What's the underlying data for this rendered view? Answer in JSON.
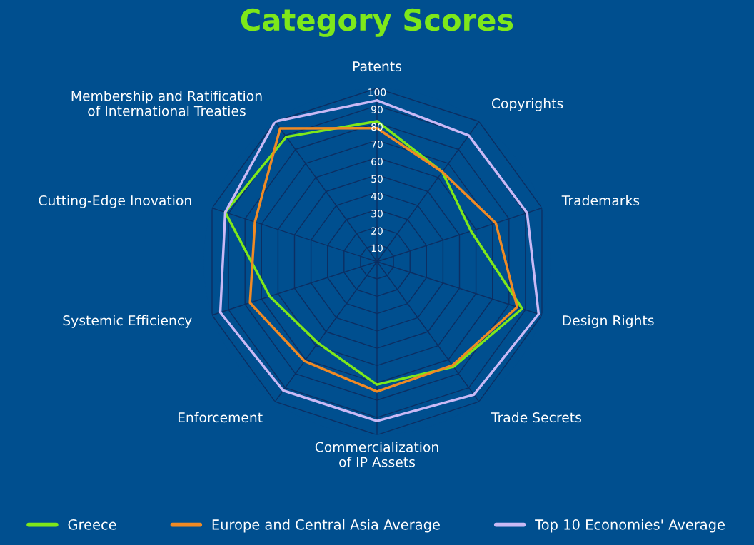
{
  "chart_data": {
    "type": "radar",
    "title": "Category Scores",
    "categories": [
      "Patents",
      "Copyrights",
      "Trademarks",
      "Design Rights",
      "Trade Secrets",
      "Commercialization\nof IP Assets",
      "Enforcement",
      "Systemic Efficiency",
      "Cutting-Edge Inovation",
      "Membership and Ratification\nof International Treaties"
    ],
    "series": [
      {
        "name": "Greece",
        "color": "#7ee81a",
        "values": [
          81,
          64,
          57,
          88,
          75,
          71,
          58,
          65,
          92,
          89
        ]
      },
      {
        "name": "Europe and Central Asia Average",
        "color": "#f08a24",
        "values": [
          77,
          64,
          72,
          85,
          74,
          75,
          71,
          77,
          74,
          95
        ]
      },
      {
        "name": "Top 10 Economies' Average",
        "color": "#c9b9f5",
        "values": [
          93,
          90,
          91,
          98,
          95,
          92,
          92,
          95,
          92,
          100
        ]
      }
    ],
    "ylim": [
      0,
      100
    ],
    "yticks": [
      10,
      20,
      30,
      40,
      50,
      60,
      70,
      80,
      90,
      100
    ],
    "grid": true,
    "legend": "bottom"
  }
}
